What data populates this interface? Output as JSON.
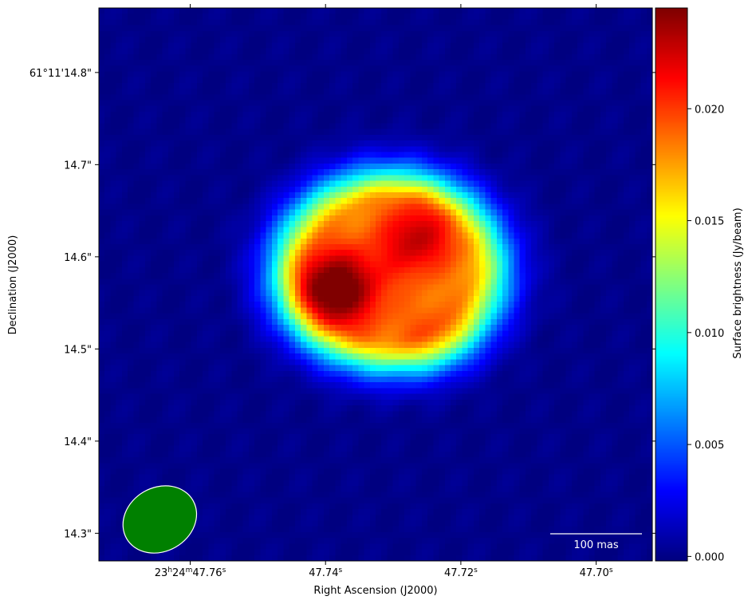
{
  "chart_data": {
    "type": "heatmap",
    "title": "",
    "xlabel": "Right Ascension (J2000)",
    "ylabel": "Declination (J2000)",
    "x_ticks": [
      {
        "ra_s": 47.76,
        "label": "23h24m47.76s"
      },
      {
        "ra_s": 47.74,
        "label": "47.74s"
      },
      {
        "ra_s": 47.72,
        "label": "47.72s"
      },
      {
        "ra_s": 47.7,
        "label": "47.70s"
      }
    ],
    "y_ticks": [
      {
        "dec_arcsec": 14.8,
        "label": "61°11'14.8\""
      },
      {
        "dec_arcsec": 14.7,
        "label": "14.7\""
      },
      {
        "dec_arcsec": 14.6,
        "label": "14.6\""
      },
      {
        "dec_arcsec": 14.5,
        "label": "14.5\""
      },
      {
        "dec_arcsec": 14.4,
        "label": "14.4\""
      },
      {
        "dec_arcsec": 14.3,
        "label": "14.3\""
      }
    ],
    "x_range_ra_s": [
      47.7735,
      47.6917
    ],
    "y_range_dec_arcsec": [
      14.27,
      14.87
    ],
    "source": {
      "center_ra_s": 47.7305,
      "center_dec_arcsec": 14.585,
      "ring_radius_x_ra_s": 0.0205,
      "ring_radius_y_dec_arcsec": 0.13,
      "peak_jy_per_beam": 0.0245,
      "peak_position": {
        "ra_s": 47.7385,
        "dec_arcsec": 14.565
      }
    },
    "beam": {
      "center_ra_s": 47.7645,
      "center_dec_arcsec": 14.315,
      "color": "#008000",
      "edge_color": "#ffffff"
    },
    "scale_bar": {
      "label": "100 mas",
      "length_mas": 100,
      "color": "#ffffff"
    },
    "colorbar": {
      "label": "Surface brightness (Jy/beam)",
      "colormap": "jet",
      "range": [
        -0.0002,
        0.0245
      ],
      "ticks": [
        0.0,
        0.005,
        0.01,
        0.015,
        0.02
      ],
      "tick_labels": [
        "0.000",
        "0.005",
        "0.010",
        "0.015",
        "0.020"
      ]
    },
    "grid": false
  },
  "tick_label_parts": [
    {
      "h": "23",
      "h_unit": "h",
      "m": "24",
      "m_unit": "m",
      "s": "47.76",
      "s_unit": "s"
    },
    {
      "s": "47.74",
      "s_unit": "s"
    },
    {
      "s": "47.72",
      "s_unit": "s"
    },
    {
      "s": "47.70",
      "s_unit": "s"
    }
  ]
}
